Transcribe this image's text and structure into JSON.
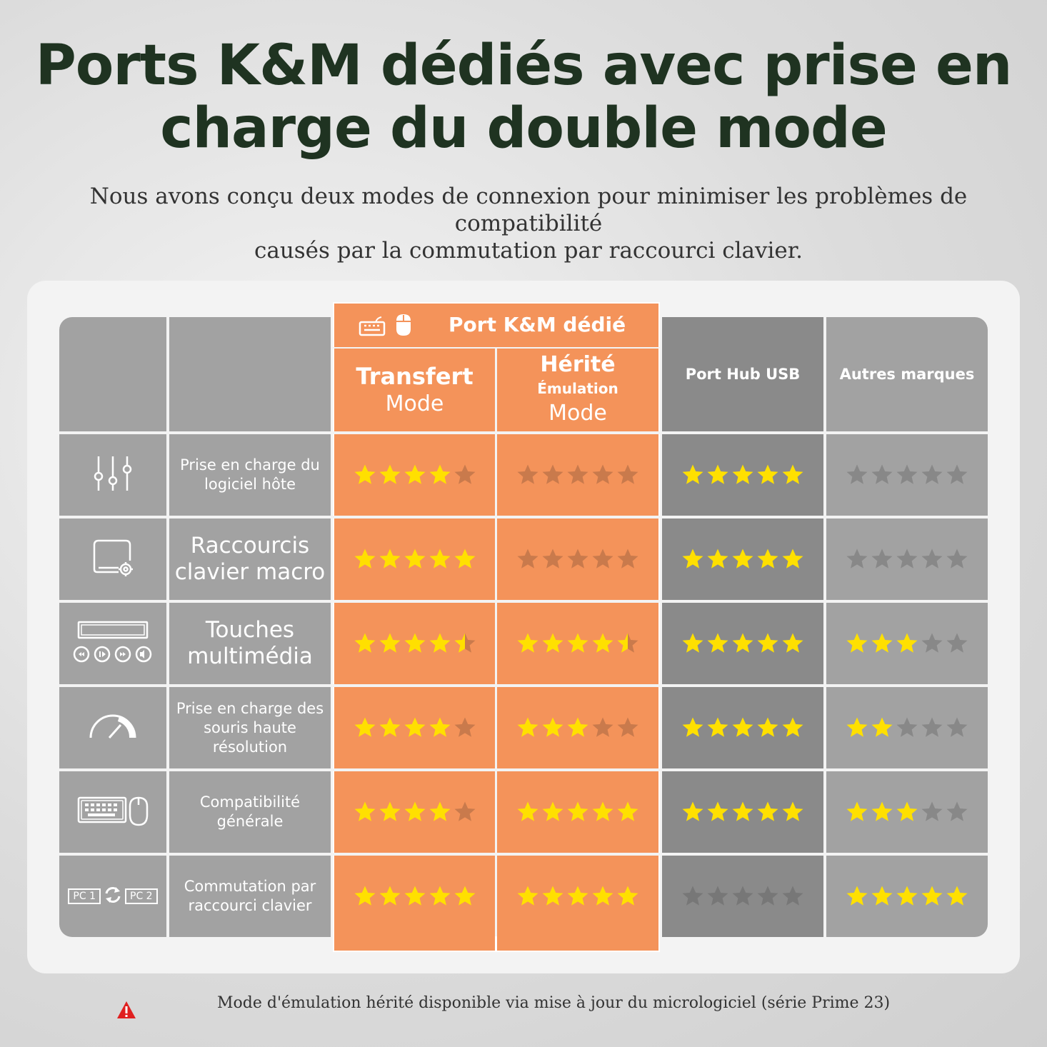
{
  "headline": {
    "line1": "Ports K&M dédiés avec prise en",
    "line2": "charge du double mode"
  },
  "subtitle": {
    "line1": "Nous avons conçu deux modes de connexion pour minimiser les problèmes de compatibilité",
    "line2": "causés par la commutation par raccourci clavier."
  },
  "table": {
    "group_header": {
      "label": "Port K&M dédié",
      "icons": [
        "keyboard-icon",
        "mouse-icon"
      ]
    },
    "columns": [
      {
        "line1": "Transfert",
        "line2": "Mode"
      },
      {
        "line1": "Hérité",
        "line2": "Émulation",
        "line3": "Mode"
      },
      {
        "label": "Port Hub USB"
      },
      {
        "label": "Autres marques"
      }
    ],
    "rows": [
      {
        "icon": "sliders-icon",
        "label": "Prise en charge du logiciel hôte",
        "ratings": [
          4,
          0,
          5,
          0
        ]
      },
      {
        "icon": "macro-settings-icon",
        "label": "Raccourcis clavier macro",
        "ratings": [
          5,
          0,
          5,
          0
        ]
      },
      {
        "icon": "media-keys-icon",
        "label": "Touches multimédia",
        "ratings": [
          4.5,
          4.5,
          5,
          3
        ]
      },
      {
        "icon": "speedometer-icon",
        "label": "Prise en charge des souris haute résolution",
        "ratings": [
          4,
          3,
          5,
          2
        ]
      },
      {
        "icon": "keyboard-mouse-icon",
        "label": "Compatibilité générale",
        "ratings": [
          4,
          5,
          5,
          3
        ]
      },
      {
        "icon": "pc-switch-icon",
        "label": "Commutation par raccourci clavier",
        "ratings": [
          5,
          5,
          0,
          5
        ],
        "pc_labels": [
          "PC 1",
          "PC 2"
        ]
      }
    ],
    "star_max": 5,
    "colors": {
      "star_on": "#ffe000",
      "star_off_orange": "#c97a4c",
      "star_off_gray": "#888888",
      "star_off_dark": "#777777"
    }
  },
  "footnote": "Mode d'émulation hérité disponible via mise à jour du micrologiciel (série Prime 23)"
}
